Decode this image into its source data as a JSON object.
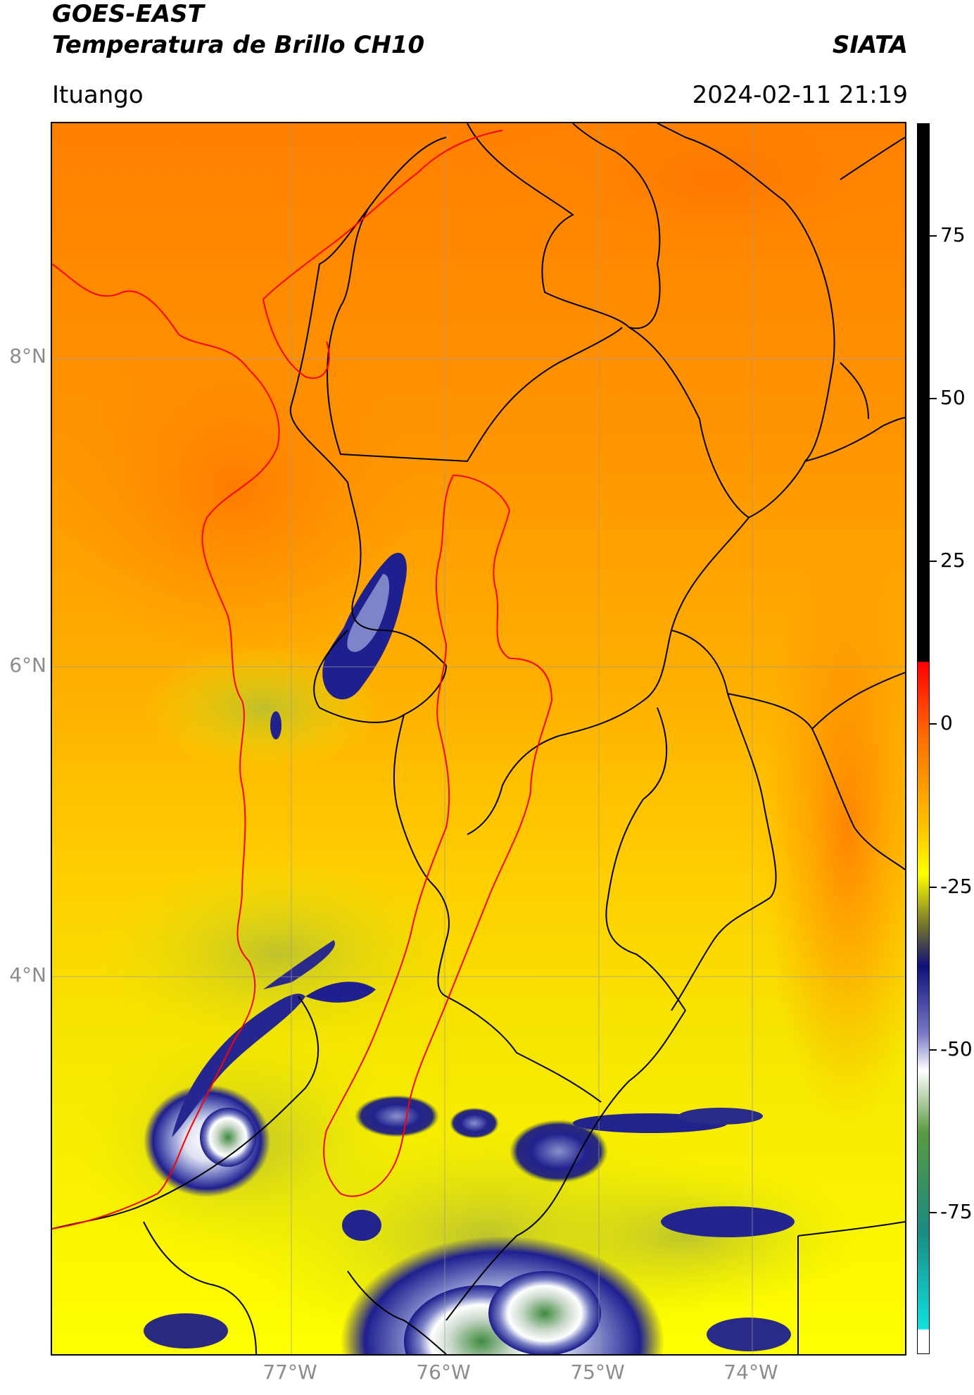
{
  "header": {
    "title_line1": "GOES-EAST",
    "title_line2": "Temperatura de Brillo CH10",
    "org": "SIATA",
    "location": "Ituango",
    "timestamp": "2024-02-11 21:19"
  },
  "map": {
    "lat_ticks": [
      "8°N",
      "6°N",
      "4°N"
    ],
    "lon_ticks": [
      "77°W",
      "76°W",
      "75°W",
      "74°W"
    ],
    "colors": {
      "warm_orange": "#ff7f00",
      "orange": "#ffa500",
      "yellow": "#ffff00",
      "cloud_navy": "#1a1a8c",
      "cloud_white": "#e8eaf5",
      "cloud_green": "#3c8c3c",
      "border_black": "#000000",
      "basin_red": "#ff0000",
      "grid_gray": "#999999"
    }
  },
  "colorbar": {
    "labels": [
      "75",
      "50",
      "25",
      "0",
      "-25",
      "-50",
      "-75"
    ],
    "stops": [
      {
        "color": "#000000"
      },
      {
        "color": "#000000"
      },
      {
        "color": "#ff0000"
      },
      {
        "color": "#ff8000"
      },
      {
        "color": "#ffd000"
      },
      {
        "color": "#ffff00"
      },
      {
        "color": "#6a6a30"
      },
      {
        "color": "#10107a"
      },
      {
        "color": "#7a7ac8"
      },
      {
        "color": "#ffffff"
      },
      {
        "color": "#5a9a40"
      },
      {
        "color": "#1a8a80"
      },
      {
        "color": "#10e0e0"
      },
      {
        "color": "#ffffff"
      }
    ]
  }
}
